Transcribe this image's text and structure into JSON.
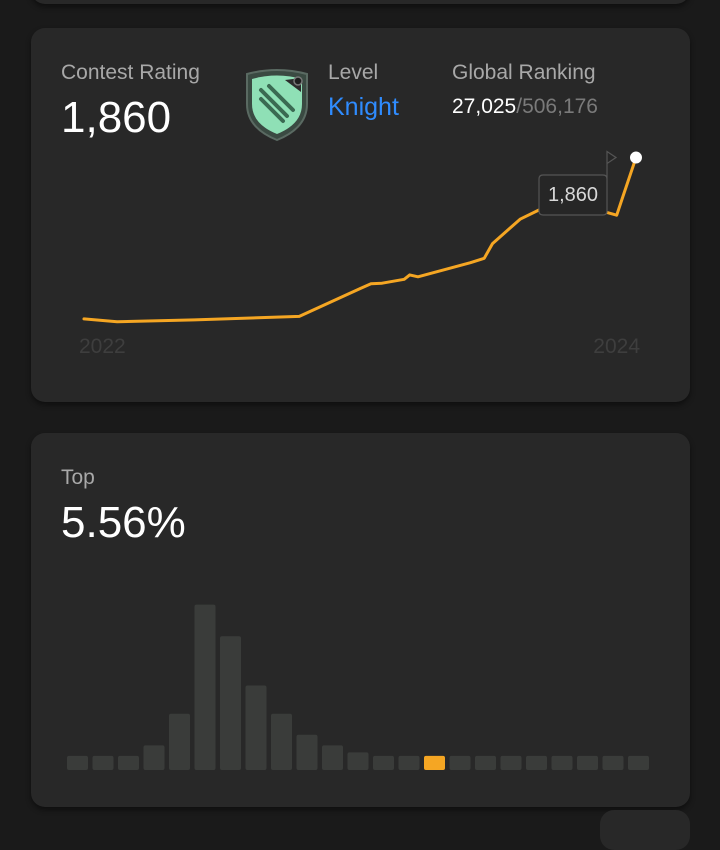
{
  "rating_card": {
    "rating_label": "Contest Rating",
    "rating_value": "1,860",
    "level_label": "Level",
    "level_value": "Knight",
    "ranking_label": "Global Ranking",
    "ranking_current": "27,025",
    "ranking_separator": "/",
    "ranking_total": "506,176",
    "badge_icon": "knight-badge-icon",
    "colors": {
      "line": "#f5a623",
      "level": "#2f8cff",
      "badge": "#8fe0b6"
    }
  },
  "top_card": {
    "top_label": "Top",
    "top_value": "5.56%",
    "colors": {
      "bar": "#3a3c3a",
      "highlight": "#f5a623"
    }
  },
  "chart_data": [
    {
      "type": "line",
      "title": "",
      "x_ticks": [
        "2022",
        "2024"
      ],
      "points": [
        [
          0.0,
          1530
        ],
        [
          0.06,
          1524
        ],
        [
          0.2,
          1528
        ],
        [
          0.39,
          1535
        ],
        [
          0.5,
          1592
        ],
        [
          0.52,
          1602
        ],
        [
          0.54,
          1603
        ],
        [
          0.58,
          1611
        ],
        [
          0.59,
          1620
        ],
        [
          0.605,
          1616
        ],
        [
          0.7,
          1645
        ],
        [
          0.725,
          1654
        ],
        [
          0.74,
          1684
        ],
        [
          0.79,
          1734
        ],
        [
          0.83,
          1756
        ],
        [
          0.9,
          1753
        ],
        [
          0.94,
          1750
        ],
        [
          0.965,
          1742
        ],
        [
          0.975,
          1776
        ],
        [
          1.0,
          1860
        ]
      ],
      "x_range": [
        0,
        1
      ],
      "y_range": [
        1450,
        1900
      ],
      "tooltip_value": "1,860",
      "grid": false,
      "legend": "none"
    },
    {
      "type": "bar",
      "title": "",
      "note": "rating distribution; highlighted bar marks current position",
      "values": [
        4,
        4,
        4,
        7,
        16,
        47,
        38,
        24,
        16,
        10,
        7,
        5,
        4,
        4,
        4,
        4,
        4,
        4,
        4,
        4,
        4,
        4,
        4
      ],
      "highlight_index": 14,
      "y_range": [
        0,
        50
      ],
      "grid": false,
      "legend": "none"
    }
  ]
}
